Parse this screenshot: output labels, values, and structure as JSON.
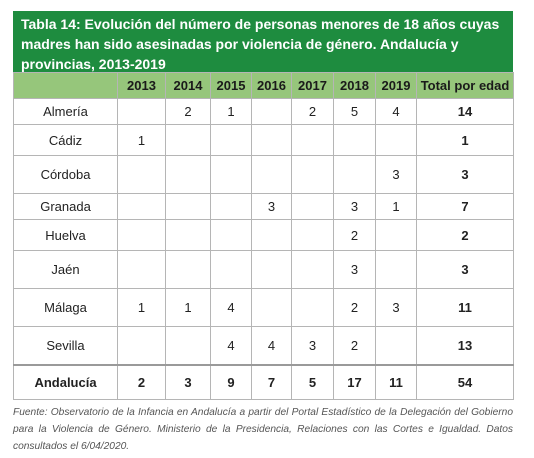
{
  "title": "Tabla 14: Evolución del número de personas menores de 18 años cuyas madres han sido asesinadas por violencia de género. Andalucía y provincias, 2013-2019",
  "columns": [
    "",
    "2013",
    "2014",
    "2015",
    "2016",
    "2017",
    "2018",
    "2019",
    "Total por edad"
  ],
  "rows": [
    {
      "name": "Almería",
      "cells": [
        "",
        "2",
        "1",
        "",
        "2",
        "5",
        "4",
        "14"
      ]
    },
    {
      "name": "Cádiz",
      "cells": [
        "1",
        "",
        "",
        "",
        "",
        "",
        "",
        "1"
      ]
    },
    {
      "name": "Córdoba",
      "cells": [
        "",
        "",
        "",
        "",
        "",
        "",
        "3",
        "3"
      ]
    },
    {
      "name": "Granada",
      "cells": [
        "",
        "",
        "",
        "3",
        "",
        "3",
        "1",
        "7"
      ]
    },
    {
      "name": "Huelva",
      "cells": [
        "",
        "",
        "",
        "",
        "",
        "2",
        "",
        "2"
      ]
    },
    {
      "name": "Jaén",
      "cells": [
        "",
        "",
        "",
        "",
        "",
        "3",
        "",
        "3"
      ]
    },
    {
      "name": "Málaga",
      "cells": [
        "1",
        "1",
        "4",
        "",
        "",
        "2",
        "3",
        "11"
      ]
    },
    {
      "name": "Sevilla",
      "cells": [
        "",
        "",
        "4",
        "4",
        "3",
        "2",
        "",
        "13"
      ]
    }
  ],
  "total_row": {
    "name": "Andalucía",
    "cells": [
      "2",
      "3",
      "9",
      "7",
      "5",
      "17",
      "11",
      "54"
    ]
  },
  "source": "Fuente: Observatorio de la Infancia en Andalucía a partir del Portal Estadístico de la Delegación del Gobierno para la Violencia de Género. Ministerio de la Presidencia, Relaciones con las Cortes e Igualdad. Datos consultados el 6/04/2020.",
  "colors": {
    "title_bg": "#1e8c3f",
    "header_bg": "#96c67b"
  }
}
